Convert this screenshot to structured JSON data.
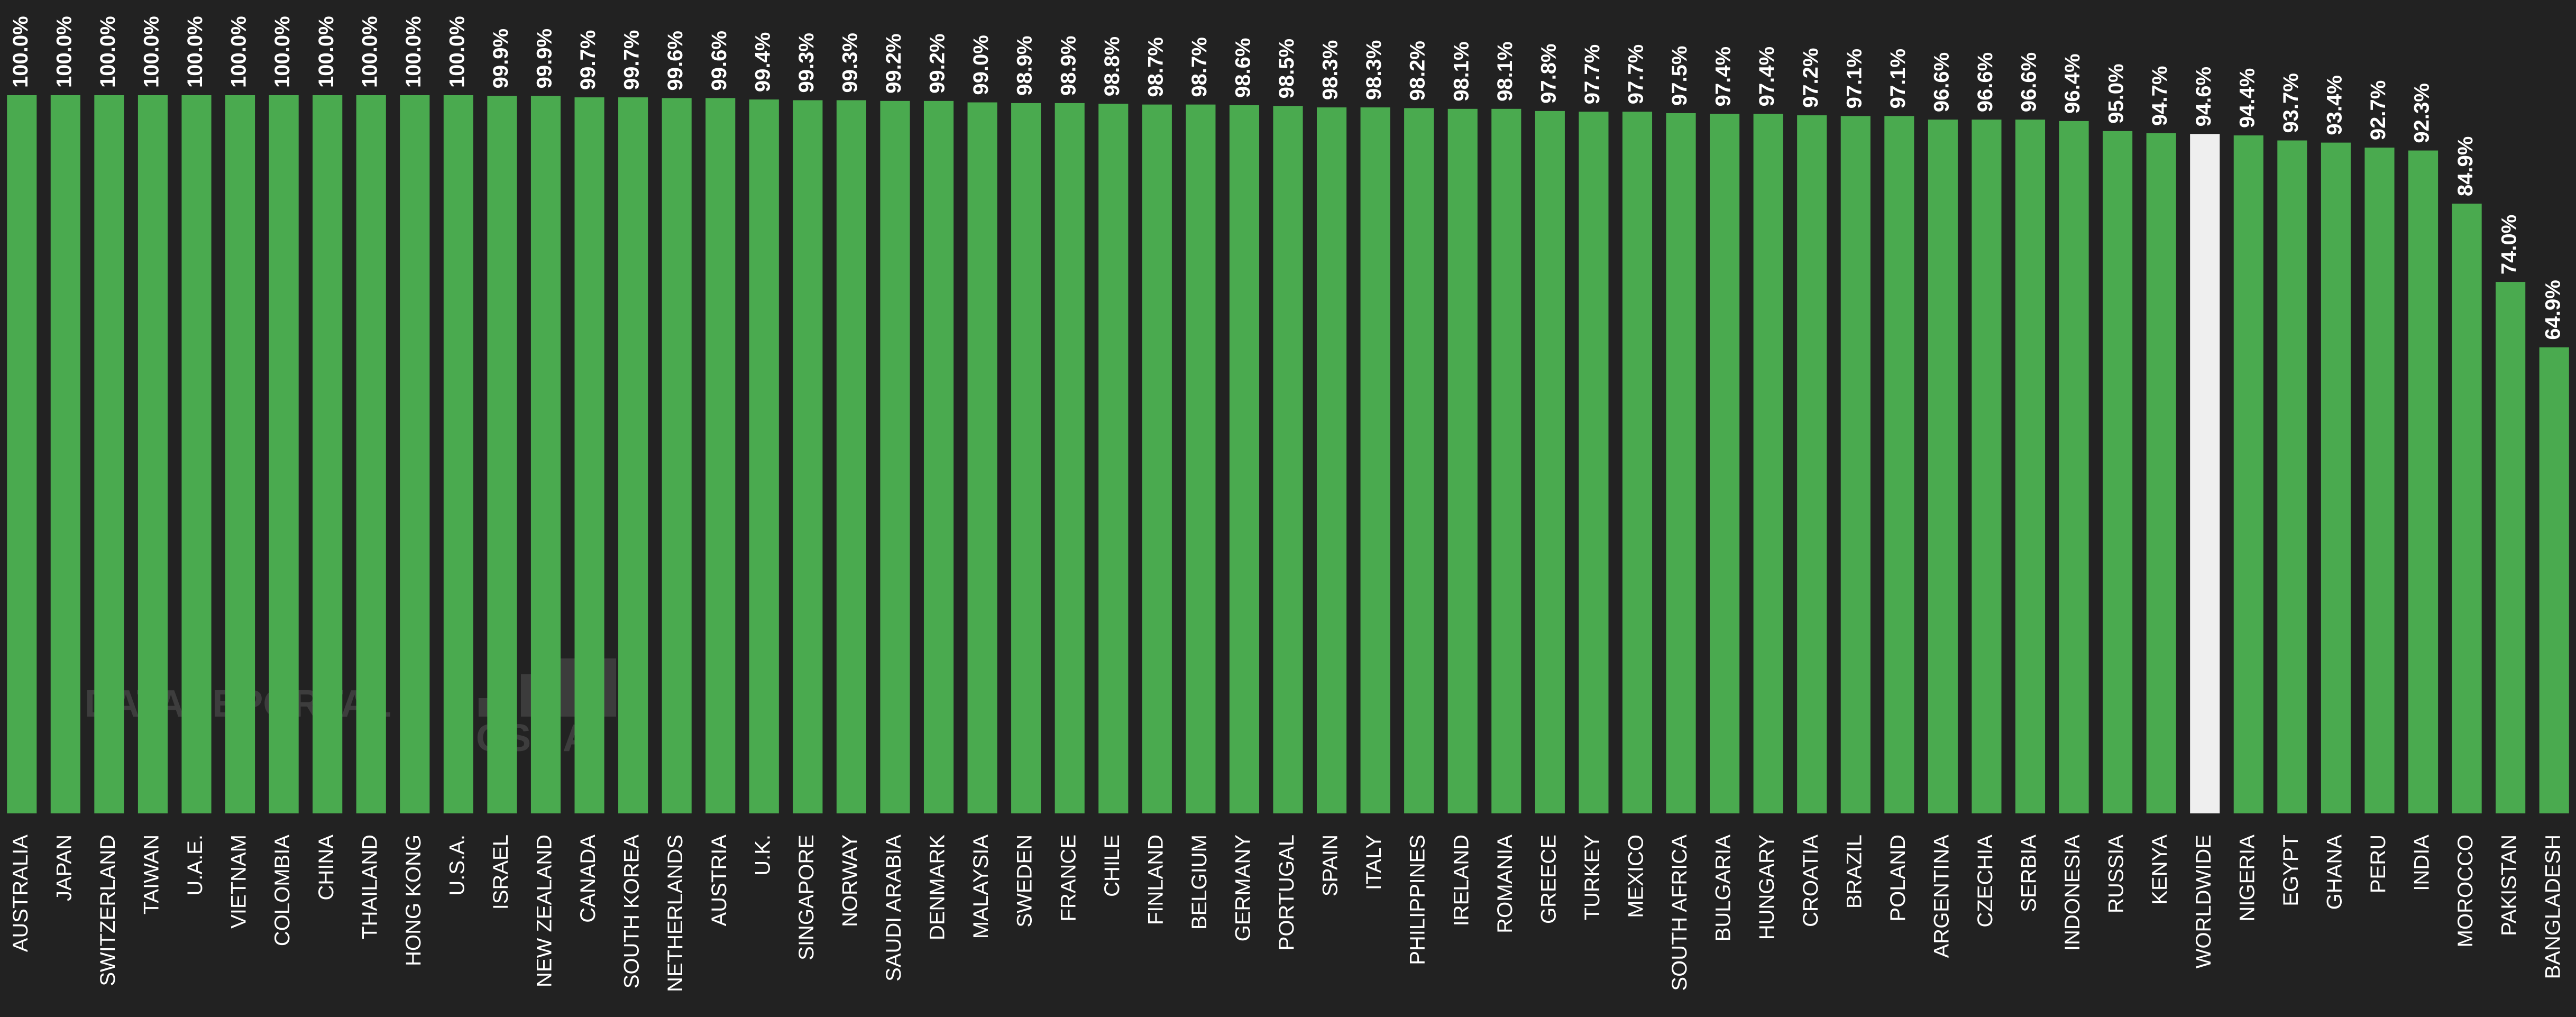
{
  "chart_data": {
    "type": "bar",
    "categories": [
      "AUSTRALIA",
      "JAPAN",
      "SWITZERLAND",
      "TAIWAN",
      "U.A.E.",
      "VIETNAM",
      "COLOMBIA",
      "CHINA",
      "THAILAND",
      "HONG KONG",
      "U.S.A.",
      "ISRAEL",
      "NEW ZEALAND",
      "CANADA",
      "SOUTH KOREA",
      "NETHERLANDS",
      "AUSTRIA",
      "U.K.",
      "SINGAPORE",
      "NORWAY",
      "SAUDI ARABIA",
      "DENMARK",
      "MALAYSIA",
      "SWEDEN",
      "FRANCE",
      "CHILE",
      "FINLAND",
      "BELGIUM",
      "GERMANY",
      "PORTUGAL",
      "SPAIN",
      "ITALY",
      "PHILIPPINES",
      "IRELAND",
      "ROMANIA",
      "GREECE",
      "TURKEY",
      "MEXICO",
      "SOUTH AFRICA",
      "BULGARIA",
      "HUNGARY",
      "CROATIA",
      "BRAZIL",
      "POLAND",
      "ARGENTINA",
      "CZECHIA",
      "SERBIA",
      "INDONESIA",
      "RUSSIA",
      "KENYA",
      "WORLDWIDE",
      "NIGERIA",
      "EGYPT",
      "GHANA",
      "PERU",
      "INDIA",
      "MOROCCO",
      "PAKISTAN",
      "BANGLADESH"
    ],
    "values": [
      100.0,
      100.0,
      100.0,
      100.0,
      100.0,
      100.0,
      100.0,
      100.0,
      100.0,
      100.0,
      100.0,
      99.9,
      99.9,
      99.7,
      99.7,
      99.6,
      99.6,
      99.4,
      99.3,
      99.3,
      99.2,
      99.2,
      99.0,
      98.9,
      98.9,
      98.8,
      98.7,
      98.7,
      98.6,
      98.5,
      98.3,
      98.3,
      98.2,
      98.1,
      98.1,
      97.8,
      97.7,
      97.7,
      97.5,
      97.4,
      97.4,
      97.2,
      97.1,
      97.1,
      96.6,
      96.6,
      96.6,
      96.4,
      95.0,
      94.7,
      94.6,
      94.4,
      93.7,
      93.4,
      92.7,
      92.3,
      84.9,
      74.0,
      64.9
    ],
    "value_labels": [
      "100.0%",
      "100.0%",
      "100.0%",
      "100.0%",
      "100.0%",
      "100.0%",
      "100.0%",
      "100.0%",
      "100.0%",
      "100.0%",
      "100.0%",
      "99.9%",
      "99.9%",
      "99.7%",
      "99.7%",
      "99.6%",
      "99.6%",
      "99.4%",
      "99.3%",
      "99.3%",
      "99.2%",
      "99.2%",
      "99.0%",
      "98.9%",
      "98.9%",
      "98.8%",
      "98.7%",
      "98.7%",
      "98.6%",
      "98.5%",
      "98.3%",
      "98.3%",
      "98.2%",
      "98.1%",
      "98.1%",
      "97.8%",
      "97.7%",
      "97.7%",
      "97.5%",
      "97.4%",
      "97.4%",
      "97.2%",
      "97.1%",
      "97.1%",
      "96.6%",
      "96.6%",
      "96.6%",
      "96.4%",
      "95.0%",
      "94.7%",
      "94.6%",
      "94.4%",
      "93.7%",
      "93.4%",
      "92.7%",
      "92.3%",
      "84.9%",
      "74.0%",
      "64.9%"
    ],
    "color": "#4aaa4f",
    "highlight_index": 50,
    "highlight_color": "#efefef",
    "ylim": [
      0,
      100
    ],
    "watermarks": [
      "DATAREPORTAL",
      "GSMA"
    ]
  }
}
